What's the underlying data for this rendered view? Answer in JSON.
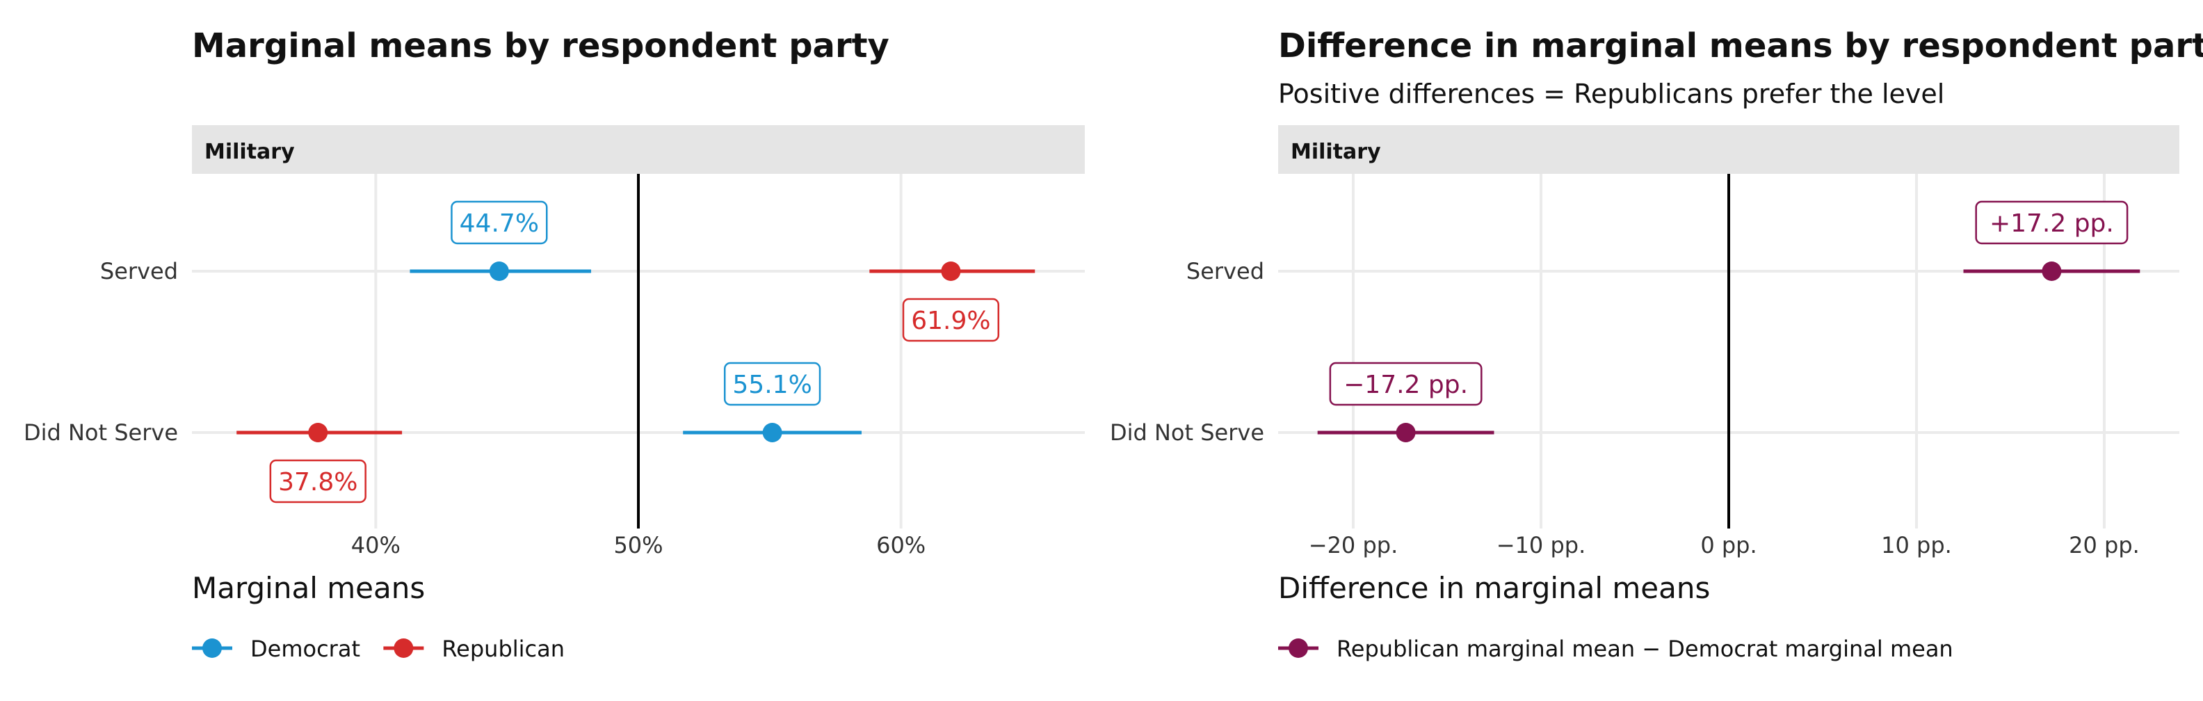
{
  "chart_data": [
    {
      "type": "pointrange",
      "title": "Marginal means by respondent party",
      "subtitle": "",
      "facet": "Military",
      "categories": [
        "Served",
        "Did Not Serve"
      ],
      "xlim": [
        0.33,
        0.67
      ],
      "x_ticks": [
        {
          "value": 0.4,
          "label": "40%"
        },
        {
          "value": 0.5,
          "label": "50%"
        },
        {
          "value": 0.6,
          "label": "60%"
        }
      ],
      "reference_line": 0.5,
      "grid": true,
      "legend_title": "Marginal means",
      "legend_position": "bottom-left",
      "series": [
        {
          "name": "Democrat",
          "color": "#1b93d1",
          "points": [
            {
              "category": "Served",
              "estimate": 0.447,
              "low": 0.413,
              "high": 0.482,
              "label": "44.7%",
              "label_side": "above"
            },
            {
              "category": "Did Not Serve",
              "estimate": 0.551,
              "low": 0.517,
              "high": 0.585,
              "label": "55.1%",
              "label_side": "above"
            }
          ]
        },
        {
          "name": "Republican",
          "color": "#d62b2b",
          "points": [
            {
              "category": "Served",
              "estimate": 0.619,
              "low": 0.588,
              "high": 0.651,
              "label": "61.9%",
              "label_side": "below"
            },
            {
              "category": "Did Not Serve",
              "estimate": 0.378,
              "low": 0.347,
              "high": 0.41,
              "label": "37.8%",
              "label_side": "below"
            }
          ]
        }
      ]
    },
    {
      "type": "pointrange",
      "title": "Difference in marginal means by respondent party",
      "subtitle": "Positive differences = Republicans prefer the level",
      "facet": "Military",
      "categories": [
        "Served",
        "Did Not Serve"
      ],
      "xlim": [
        -24,
        24
      ],
      "x_ticks": [
        {
          "value": -20,
          "label": "−20 pp."
        },
        {
          "value": -10,
          "label": "−10 pp."
        },
        {
          "value": 0,
          "label": "0 pp."
        },
        {
          "value": 10,
          "label": "10 pp."
        },
        {
          "value": 20,
          "label": "20 pp."
        }
      ],
      "reference_line": 0,
      "grid": true,
      "legend_title": "Difference in marginal means",
      "legend_position": "bottom-left",
      "series": [
        {
          "name": "Republican marginal mean − Democrat marginal mean",
          "color": "#85124f",
          "points": [
            {
              "category": "Served",
              "estimate": 17.2,
              "low": 12.5,
              "high": 21.9,
              "label": "+17.2 pp.",
              "label_side": "above"
            },
            {
              "category": "Did Not Serve",
              "estimate": -17.2,
              "low": -21.9,
              "high": -12.5,
              "label": "−17.2 pp.",
              "label_side": "above"
            }
          ]
        }
      ]
    }
  ]
}
